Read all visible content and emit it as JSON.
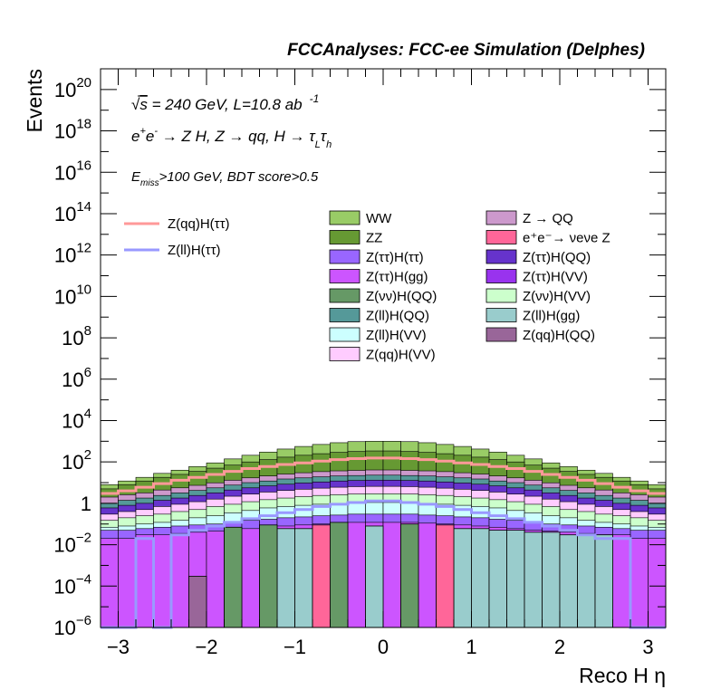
{
  "chart_data": {
    "type": "histogram-stacked",
    "title": "FCCAnalyses: FCC-ee Simulation (Delphes)",
    "xlabel": "Reco H η",
    "ylabel": "Events",
    "xlim": [
      -3.2,
      3.2
    ],
    "ylim": [
      1e-06,
      1e+21
    ],
    "yscale": "log",
    "x_ticks": [
      -3,
      -2,
      -1,
      0,
      1,
      2,
      3
    ],
    "x_tick_labels": [
      "−3",
      "−2",
      "−1",
      "0",
      "1",
      "2",
      "3"
    ],
    "y_ticks": [
      {
        "mant": "10",
        "exp": "−6",
        "value": 1e-06
      },
      {
        "mant": "10",
        "exp": "−4",
        "value": 0.0001
      },
      {
        "mant": "10",
        "exp": "−2",
        "value": 0.01
      },
      {
        "mant": "1",
        "exp": "",
        "value": 1
      },
      {
        "mant": "10",
        "exp": "2",
        "value": 100.0
      },
      {
        "mant": "10",
        "exp": "4",
        "value": 10000.0
      },
      {
        "mant": "10",
        "exp": "6",
        "value": 1000000.0
      },
      {
        "mant": "10",
        "exp": "8",
        "value": 100000000.0
      },
      {
        "mant": "10",
        "exp": "10",
        "value": 10000000000.0
      },
      {
        "mant": "10",
        "exp": "12",
        "value": 1000000000000.0
      },
      {
        "mant": "10",
        "exp": "14",
        "value": 100000000000000.0
      },
      {
        "mant": "10",
        "exp": "16",
        "value": 1e+16
      },
      {
        "mant": "10",
        "exp": "18",
        "value": 1e+18
      },
      {
        "mant": "10",
        "exp": "20",
        "value": 1e+20
      }
    ],
    "annotations": {
      "sqrt_s": {
        "sqrt": "√",
        "s": "s",
        "rest": " = 240 GeV, L=10.8 ab",
        "sup": "-1"
      },
      "process": {
        "pre": "e",
        "sup1": "+",
        "mid": "e",
        "sup2": "-",
        "text": " → Z H, Z  → qq, H  → τ",
        "sub1": "L",
        "tau2": "τ",
        "sub2": "h"
      },
      "cuts": {
        "e": "E",
        "sub": "miss",
        "text": ">100 GeV, BDT score>0.5"
      }
    },
    "bin_edges": [
      -3.2,
      -3.0,
      -2.8,
      -2.6,
      -2.4,
      -2.2,
      -2.0,
      -1.8,
      -1.6,
      -1.4,
      -1.2,
      -1.0,
      -0.8,
      -0.6,
      -0.4,
      -0.2,
      0.0,
      0.2,
      0.4,
      0.6,
      0.8,
      1.0,
      1.2,
      1.4,
      1.6,
      1.8,
      2.0,
      2.2,
      2.4,
      2.6,
      2.8,
      3.0,
      3.2
    ],
    "stack_boundaries": [
      {
        "color": "#cc55ff",
        "values": [
          0.02,
          0.02,
          0.03,
          0.03,
          0.035,
          0.04,
          0.045,
          0.05,
          0.06,
          0.07,
          0.08,
          0.09,
          0.1,
          0.11,
          0.12,
          0.12,
          0.12,
          0.12,
          0.11,
          0.1,
          0.09,
          0.08,
          0.07,
          0.06,
          0.05,
          0.045,
          0.04,
          0.035,
          0.03,
          0.03,
          0.02,
          0.02
        ]
      },
      {
        "color": "#9966ff",
        "values": [
          0.05,
          0.05,
          0.06,
          0.07,
          0.08,
          0.09,
          0.1,
          0.12,
          0.15,
          0.17,
          0.2,
          0.22,
          0.25,
          0.27,
          0.3,
          0.3,
          0.3,
          0.3,
          0.27,
          0.25,
          0.22,
          0.2,
          0.17,
          0.15,
          0.12,
          0.1,
          0.09,
          0.08,
          0.07,
          0.06,
          0.05,
          0.05
        ]
      },
      {
        "color": "#ccffff",
        "values": [
          0.07,
          0.08,
          0.1,
          0.12,
          0.15,
          0.2,
          0.25,
          0.35,
          0.45,
          0.6,
          0.7,
          0.8,
          0.9,
          1.0,
          1.1,
          1.1,
          1.1,
          1.1,
          1.0,
          0.9,
          0.8,
          0.7,
          0.6,
          0.45,
          0.35,
          0.25,
          0.2,
          0.15,
          0.12,
          0.1,
          0.08,
          0.07
        ]
      },
      {
        "color": "#ccffcc",
        "values": [
          0.15,
          0.2,
          0.25,
          0.3,
          0.4,
          0.5,
          0.7,
          0.9,
          1.2,
          1.5,
          1.8,
          2.1,
          2.4,
          2.6,
          2.8,
          2.9,
          2.9,
          2.8,
          2.6,
          2.4,
          2.1,
          1.8,
          1.5,
          1.2,
          0.9,
          0.7,
          0.5,
          0.4,
          0.3,
          0.25,
          0.2,
          0.15
        ]
      },
      {
        "color": "#ffccff",
        "values": [
          0.3,
          0.4,
          0.5,
          0.7,
          0.9,
          1.2,
          1.6,
          2.2,
          2.8,
          3.5,
          4.2,
          4.8,
          5.4,
          6.0,
          6.4,
          6.6,
          6.6,
          6.4,
          6.0,
          5.4,
          4.8,
          4.2,
          3.5,
          2.8,
          2.2,
          1.6,
          1.2,
          0.9,
          0.7,
          0.5,
          0.4,
          0.3
        ]
      },
      {
        "color": "#6633cc",
        "values": [
          0.6,
          0.8,
          1.0,
          1.4,
          1.8,
          2.4,
          3.2,
          4.4,
          5.6,
          7.0,
          8.4,
          9.6,
          10.8,
          12.0,
          12.8,
          13.2,
          13.2,
          12.8,
          12.0,
          10.8,
          9.6,
          8.4,
          7.0,
          5.6,
          4.4,
          3.2,
          2.4,
          1.8,
          1.4,
          1.0,
          0.8,
          0.6
        ]
      },
      {
        "color": "#559999",
        "values": [
          1.0,
          1.4,
          1.8,
          2.4,
          3.2,
          4.2,
          5.6,
          7.6,
          10,
          12,
          15,
          17,
          19,
          21,
          22,
          23,
          23,
          22,
          21,
          19,
          17,
          15,
          12,
          10,
          7.6,
          5.6,
          4.2,
          3.2,
          2.4,
          1.8,
          1.4,
          1.0
        ]
      },
      {
        "color": "#cc99cc",
        "values": [
          2.0,
          2.6,
          3.2,
          4.4,
          5.6,
          7.4,
          9.8,
          13,
          17,
          21,
          26,
          30,
          34,
          37,
          39,
          41,
          41,
          39,
          37,
          34,
          30,
          26,
          21,
          17,
          13,
          9.8,
          7.4,
          5.6,
          4.4,
          3.2,
          2.6,
          2.0
        ]
      },
      {
        "color": "#669933",
        "values": [
          5,
          8,
          12,
          18,
          25,
          35,
          50,
          70,
          100,
          130,
          170,
          210,
          250,
          290,
          320,
          340,
          340,
          320,
          290,
          250,
          210,
          170,
          130,
          100,
          70,
          50,
          35,
          25,
          18,
          12,
          8,
          5
        ]
      },
      {
        "color": "#99cc66",
        "values": [
          8,
          12,
          18,
          28,
          40,
          60,
          90,
          140,
          210,
          300,
          420,
          560,
          700,
          850,
          960,
          1000,
          1000,
          960,
          850,
          700,
          560,
          420,
          300,
          210,
          140,
          90,
          60,
          40,
          28,
          18,
          12,
          8
        ]
      }
    ],
    "standalone_bars": [
      {
        "series": "Z(ll)H(gg)",
        "color": "#99cccc",
        "values": [
          0,
          0,
          0,
          0,
          0,
          0,
          0,
          0,
          0,
          0.05,
          0.06,
          0.06,
          0,
          0,
          0,
          0.08,
          0,
          0,
          0,
          0,
          0.06,
          0.06,
          0.05,
          0.05,
          0.04,
          0.04,
          0.03,
          0.03,
          0.03,
          0,
          0,
          0
        ]
      },
      {
        "series": "Z(νν)H(QQ)",
        "color": "#669966",
        "values": [
          0,
          0,
          0,
          0,
          0,
          0,
          0,
          0.07,
          0,
          0.09,
          0,
          0,
          0,
          0.12,
          0,
          0,
          0,
          0.1,
          0,
          0,
          0,
          0,
          0,
          0,
          0,
          0,
          0,
          0,
          0,
          0,
          0,
          0
        ]
      },
      {
        "series": "e⁺e⁻ → νeνe Z",
        "color": "#ff6699",
        "values": [
          0,
          0,
          0,
          0,
          0,
          0,
          0,
          0,
          0,
          0,
          0,
          0,
          0.09,
          0,
          0,
          0,
          0,
          0,
          0,
          0.09,
          0,
          0,
          0,
          0,
          0,
          0,
          0,
          0,
          0,
          0,
          0,
          0
        ]
      },
      {
        "series": "Z(qq)H(QQ)",
        "color": "#996699",
        "values": [
          0,
          0,
          0,
          0,
          0,
          0.0003,
          0,
          0,
          0,
          0,
          0,
          0,
          0,
          0,
          0,
          0,
          0,
          0,
          0,
          0,
          0,
          0,
          0,
          0,
          0,
          0,
          0,
          0,
          0,
          0,
          0,
          0
        ]
      }
    ],
    "lines": [
      {
        "series": "Z(qq)H(ττ)",
        "color": "#ff9999",
        "values": [
          3,
          4,
          6,
          9,
          13,
          18,
          25,
          35,
          48,
          60,
          75,
          90,
          110,
          130,
          145,
          155,
          155,
          145,
          130,
          110,
          90,
          75,
          60,
          48,
          35,
          25,
          18,
          13,
          9,
          6,
          4,
          3
        ]
      },
      {
        "series": "Z(ll)H(ττ)",
        "color": "#9999ff",
        "values": [
          1e-07,
          1e-07,
          0.02,
          1e-07,
          0.03,
          0.05,
          0.08,
          0.12,
          0.18,
          0.25,
          0.35,
          0.5,
          0.7,
          0.9,
          1.1,
          1.3,
          1.3,
          1.1,
          0.9,
          0.7,
          0.5,
          0.35,
          0.25,
          0.18,
          0.12,
          0.08,
          0.05,
          0.03,
          0.02,
          0.02,
          1e-07,
          1e-07
        ]
      }
    ],
    "legend_lines": [
      {
        "label": "Z(qq)H(ττ)",
        "color": "#ff9999"
      },
      {
        "label": "Z(ll)H(ττ)",
        "color": "#9999ff"
      }
    ],
    "legend_left": [
      {
        "label": "WW",
        "color": "#99cc66"
      },
      {
        "label": "ZZ",
        "color": "#669933"
      },
      {
        "label": "Z(ττ)H(ττ)",
        "color": "#9966ff"
      },
      {
        "label": "Z(ττ)H(gg)",
        "color": "#cc55ff"
      },
      {
        "label": "Z(νν)H(QQ)",
        "color": "#669966"
      },
      {
        "label": "Z(ll)H(QQ)",
        "color": "#559999"
      },
      {
        "label": "Z(ll)H(VV)",
        "color": "#ccffff"
      },
      {
        "label": "Z(qq)H(VV)",
        "color": "#ffccff"
      }
    ],
    "legend_right": [
      {
        "label": "Z → QQ",
        "color": "#cc99cc"
      },
      {
        "label": "e⁺e⁻→ νeνe Z",
        "color": "#ff6699"
      },
      {
        "label": "Z(ττ)H(QQ)",
        "color": "#6633cc"
      },
      {
        "label": "Z(ττ)H(VV)",
        "color": "#9933ee"
      },
      {
        "label": "Z(νν)H(VV)",
        "color": "#ccffcc"
      },
      {
        "label": "Z(ll)H(gg)",
        "color": "#99cccc"
      },
      {
        "label": "Z(qq)H(QQ)",
        "color": "#996699"
      }
    ]
  }
}
